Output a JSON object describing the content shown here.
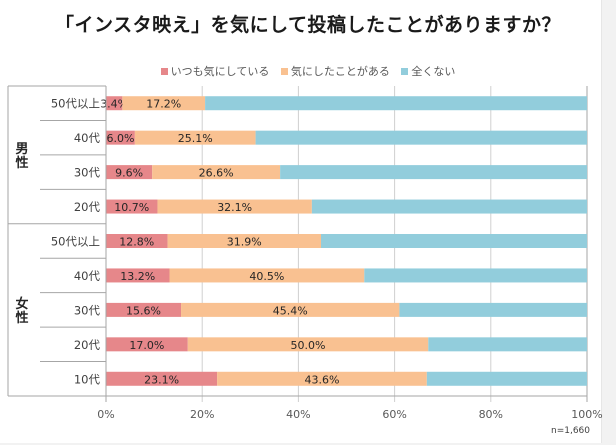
{
  "chart_data": {
    "type": "bar",
    "orientation": "horizontal-stacked-100",
    "title": "「インスタ映え」を気にして投稿したことがありますか？",
    "note": "n=1,660",
    "legend_position": "top",
    "groups": [
      {
        "label": "男性",
        "categories": [
          "50代以上",
          "40代",
          "30代",
          "20代"
        ]
      },
      {
        "label": "女性",
        "categories": [
          "50代以上",
          "40代",
          "30代",
          "20代",
          "10代"
        ]
      }
    ],
    "categories": [
      "男性 50代以上",
      "男性 40代",
      "男性 30代",
      "男性 20代",
      "女性 50代以上",
      "女性 40代",
      "女性 30代",
      "女性 20代",
      "女性 10代"
    ],
    "category_labels": [
      "50代以上",
      "40代",
      "30代",
      "20代",
      "50代以上",
      "40代",
      "30代",
      "20代",
      "10代"
    ],
    "series": [
      {
        "name": "いつも気にしている",
        "color": "#e6878a",
        "values": [
          3.4,
          6.0,
          9.6,
          10.7,
          12.8,
          13.2,
          15.6,
          17.0,
          23.1
        ],
        "labels": [
          "3.4%",
          "6.0%",
          "9.6%",
          "10.7%",
          "12.8%",
          "13.2%",
          "15.6%",
          "17.0%",
          "23.1%"
        ]
      },
      {
        "name": "気にしたことがある",
        "color": "#f9c191",
        "values": [
          17.2,
          25.1,
          26.6,
          32.1,
          31.9,
          40.5,
          45.4,
          50.0,
          43.6
        ],
        "labels": [
          "17.2%",
          "25.1%",
          "26.6%",
          "32.1%",
          "31.9%",
          "40.5%",
          "45.4%",
          "50.0%",
          "43.6%"
        ]
      },
      {
        "name": "全くない",
        "color": "#92cddc",
        "values": [
          79.4,
          68.9,
          63.8,
          57.2,
          55.3,
          46.3,
          39.0,
          33.0,
          33.3
        ],
        "labels": []
      }
    ],
    "xlim": [
      0,
      100
    ],
    "xticks": [
      "0%",
      "20%",
      "40%",
      "60%",
      "80%",
      "100%"
    ],
    "grid": true
  }
}
